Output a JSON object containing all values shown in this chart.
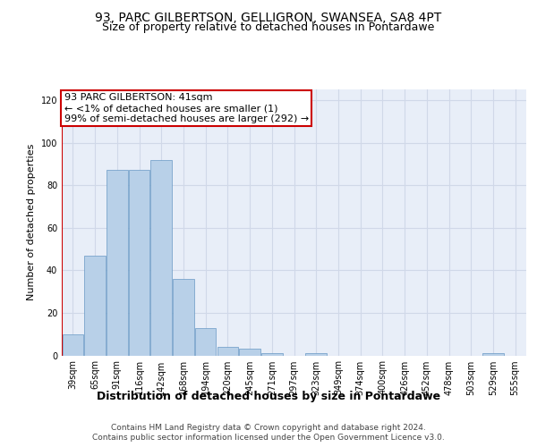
{
  "title1": "93, PARC GILBERTSON, GELLIGRON, SWANSEA, SA8 4PT",
  "title2": "Size of property relative to detached houses in Pontardawe",
  "xlabel": "Distribution of detached houses by size in Pontardawe",
  "ylabel": "Number of detached properties",
  "footer1": "Contains HM Land Registry data © Crown copyright and database right 2024.",
  "footer2": "Contains public sector information licensed under the Open Government Licence v3.0.",
  "annotation_title": "93 PARC GILBERTSON: 41sqm",
  "annotation_line2": "← <1% of detached houses are smaller (1)",
  "annotation_line3": "99% of semi-detached houses are larger (292) →",
  "bar_color": "#b8d0e8",
  "bar_edge_color": "#6899c4",
  "annotation_box_color": "#ffffff",
  "annotation_box_edge": "#cc0000",
  "vline_color": "#cc0000",
  "background_color": "#ffffff",
  "grid_color": "#d0d8e8",
  "facecolor": "#e8eef8",
  "categories": [
    "39sqm",
    "65sqm",
    "91sqm",
    "116sqm",
    "142sqm",
    "168sqm",
    "194sqm",
    "220sqm",
    "245sqm",
    "271sqm",
    "297sqm",
    "323sqm",
    "349sqm",
    "374sqm",
    "400sqm",
    "426sqm",
    "452sqm",
    "478sqm",
    "503sqm",
    "529sqm",
    "555sqm"
  ],
  "values": [
    10,
    47,
    87,
    87,
    92,
    36,
    13,
    4,
    3,
    1,
    0,
    1,
    0,
    0,
    0,
    0,
    0,
    0,
    0,
    1,
    0
  ],
  "ylim": [
    0,
    125
  ],
  "yticks": [
    0,
    20,
    40,
    60,
    80,
    100,
    120
  ],
  "title1_fontsize": 10,
  "title2_fontsize": 9,
  "xlabel_fontsize": 9,
  "ylabel_fontsize": 8,
  "tick_fontsize": 7,
  "annotation_fontsize": 8,
  "footer_fontsize": 6.5
}
